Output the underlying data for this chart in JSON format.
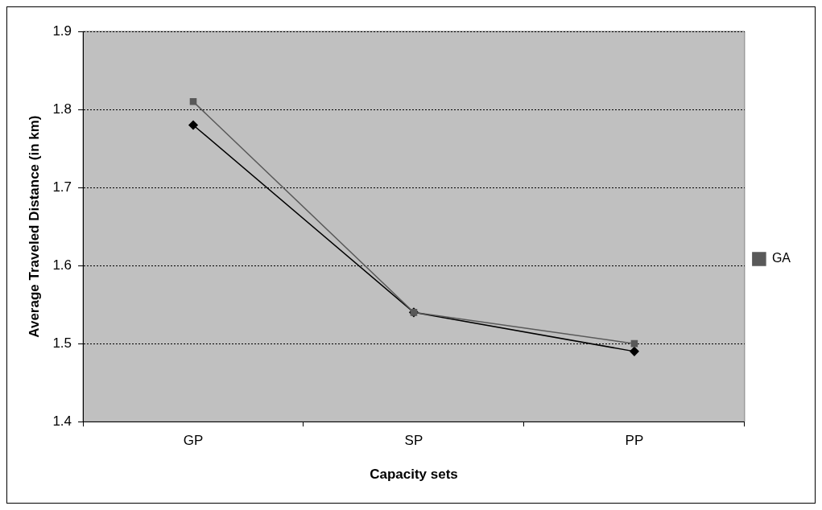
{
  "chart_data": {
    "type": "line",
    "xlabel": "Capacity sets",
    "ylabel": "Average Traveled Distance (in km)",
    "categories": [
      "GP",
      "SP",
      "PP"
    ],
    "series": [
      {
        "color": "#000000",
        "marker": "diamond",
        "values": [
          1.78,
          1.54,
          1.49
        ]
      },
      {
        "name": "GA",
        "color": "#595959",
        "marker": "square",
        "values": [
          1.81,
          1.54,
          1.5
        ]
      }
    ],
    "ylim": [
      1.4,
      1.9
    ],
    "yticks": [
      1.4,
      1.5,
      1.6,
      1.7,
      1.8,
      1.9
    ],
    "grid": "y",
    "legend": "right",
    "line_style": "solid"
  }
}
